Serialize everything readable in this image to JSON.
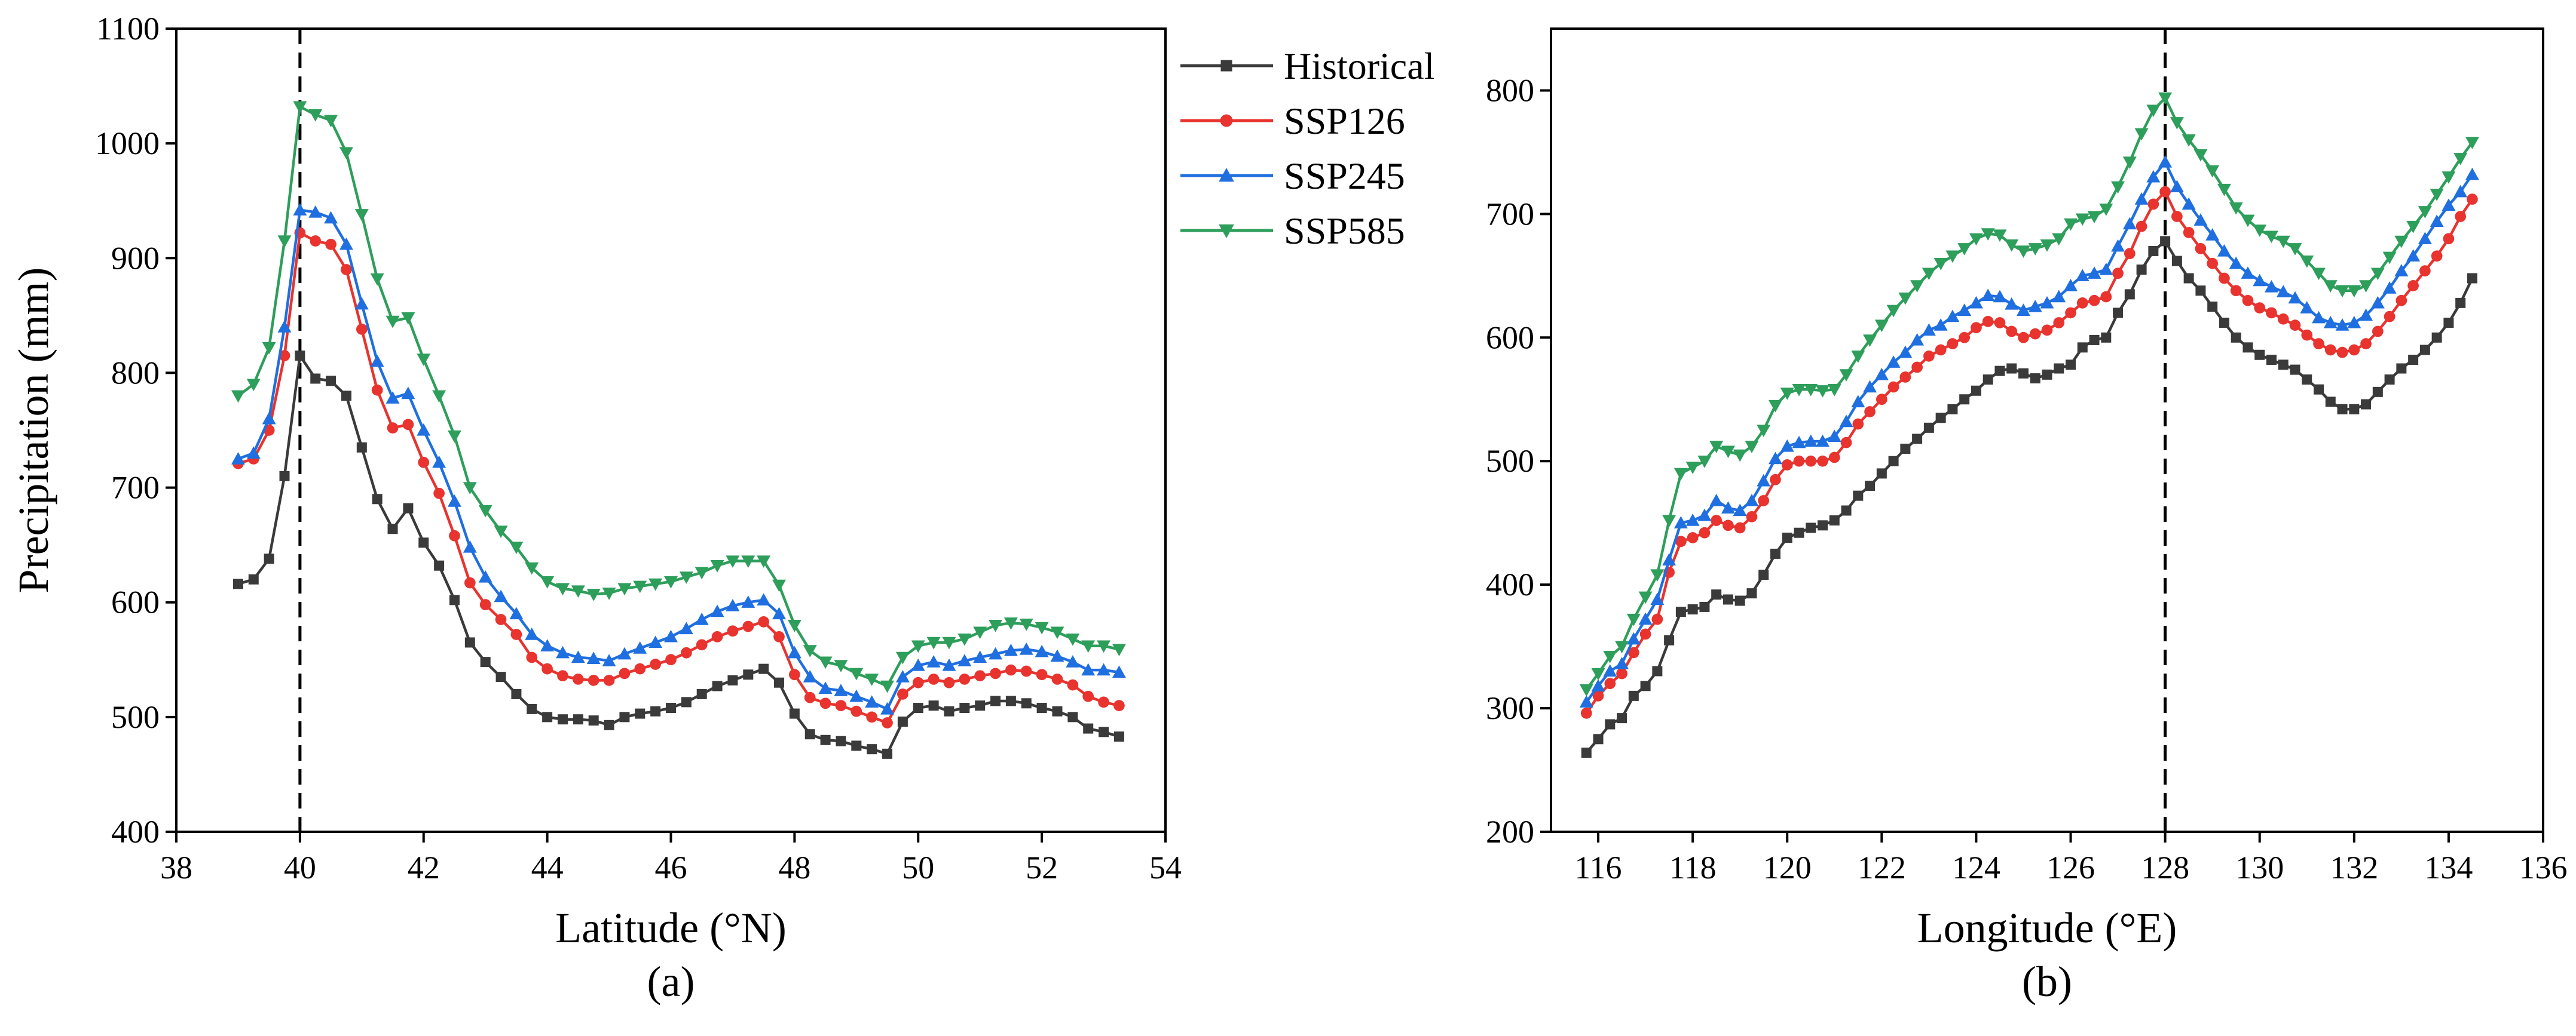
{
  "colors": {
    "Historical": "#3a3a3a",
    "SSP126": "#e8332f",
    "SSP245": "#1f6fe0",
    "SSP585": "#2e9e5b",
    "axis": "#000000"
  },
  "legend": {
    "entries": [
      "Historical",
      "SSP126",
      "SSP245",
      "SSP585"
    ],
    "placement": "top-right of panel (a)"
  },
  "chart_data": [
    {
      "type": "line",
      "panel_label": "(a)",
      "xlabel": "Latitude (°N)",
      "ylabel": "Precipitation (mm)",
      "xlim": [
        38,
        54
      ],
      "ylim": [
        400,
        1100
      ],
      "xticks": [
        38,
        40,
        42,
        44,
        46,
        48,
        50,
        52,
        54
      ],
      "yticks": [
        400,
        500,
        600,
        700,
        800,
        900,
        1000,
        1100
      ],
      "reference_x": 40,
      "x": [
        39.0,
        39.25,
        39.5,
        39.75,
        40.0,
        40.25,
        40.5,
        40.75,
        41.0,
        41.25,
        41.5,
        41.75,
        42.0,
        42.25,
        42.5,
        42.75,
        43.0,
        43.25,
        43.5,
        43.75,
        44.0,
        44.25,
        44.5,
        44.75,
        45.0,
        45.25,
        45.5,
        45.75,
        46.0,
        46.25,
        46.5,
        46.75,
        47.0,
        47.25,
        47.5,
        47.75,
        48.0,
        48.25,
        48.5,
        48.75,
        49.0,
        49.25,
        49.5,
        49.75,
        50.0,
        50.25,
        50.5,
        50.75,
        51.0,
        51.25,
        51.5,
        51.75,
        52.0,
        52.25,
        52.5,
        52.75,
        53.0,
        53.25
      ],
      "series": [
        {
          "name": "Historical",
          "marker": "square",
          "values": [
            616,
            620,
            638,
            710,
            815,
            795,
            793,
            780,
            735,
            690,
            664,
            682,
            652,
            632,
            602,
            565,
            548,
            535,
            520,
            507,
            500,
            498,
            498,
            497,
            493,
            500,
            503,
            505,
            508,
            513,
            520,
            527,
            532,
            537,
            542,
            530,
            503,
            485,
            480,
            479,
            475,
            472,
            468,
            496,
            508,
            510,
            505,
            508,
            510,
            514,
            514,
            512,
            508,
            505,
            500,
            490,
            487,
            483
          ]
        },
        {
          "name": "SSP126",
          "marker": "circle",
          "values": [
            721,
            725,
            750,
            815,
            922,
            915,
            912,
            890,
            838,
            785,
            752,
            755,
            722,
            695,
            658,
            617,
            598,
            585,
            572,
            552,
            542,
            536,
            533,
            532,
            532,
            538,
            542,
            546,
            550,
            556,
            563,
            570,
            575,
            579,
            583,
            570,
            537,
            517,
            512,
            510,
            505,
            500,
            495,
            520,
            530,
            533,
            530,
            533,
            536,
            538,
            541,
            540,
            537,
            533,
            528,
            518,
            513,
            510
          ]
        },
        {
          "name": "SSP245",
          "marker": "triangle-up",
          "values": [
            725,
            730,
            760,
            840,
            942,
            940,
            935,
            912,
            860,
            810,
            778,
            782,
            750,
            722,
            688,
            648,
            622,
            605,
            590,
            572,
            562,
            556,
            552,
            551,
            549,
            555,
            560,
            565,
            570,
            577,
            585,
            592,
            597,
            600,
            602,
            590,
            556,
            535,
            525,
            523,
            518,
            513,
            507,
            535,
            545,
            548,
            545,
            549,
            552,
            555,
            558,
            559,
            557,
            553,
            548,
            541,
            541,
            539
          ]
        },
        {
          "name": "SSP585",
          "marker": "triangle-down",
          "values": [
            780,
            790,
            822,
            915,
            1032,
            1025,
            1020,
            992,
            938,
            882,
            845,
            848,
            812,
            780,
            745,
            700,
            680,
            662,
            648,
            630,
            618,
            612,
            610,
            607,
            608,
            612,
            614,
            616,
            618,
            622,
            626,
            632,
            636,
            636,
            636,
            615,
            580,
            558,
            548,
            545,
            538,
            533,
            527,
            552,
            562,
            565,
            565,
            568,
            574,
            580,
            582,
            581,
            578,
            574,
            568,
            562,
            562,
            559
          ]
        }
      ]
    },
    {
      "type": "line",
      "panel_label": "(b)",
      "xlabel": "Longitude (°E)",
      "ylabel": "",
      "xlim": [
        115,
        136
      ],
      "ylim": [
        200,
        850
      ],
      "xticks": [
        116,
        118,
        120,
        122,
        124,
        126,
        128,
        130,
        132,
        134,
        136
      ],
      "yticks": [
        200,
        300,
        400,
        500,
        600,
        700,
        800
      ],
      "reference_x": 128,
      "x": [
        115.75,
        116.0,
        116.25,
        116.5,
        116.75,
        117.0,
        117.25,
        117.5,
        117.75,
        118.0,
        118.25,
        118.5,
        118.75,
        119.0,
        119.25,
        119.5,
        119.75,
        120.0,
        120.25,
        120.5,
        120.75,
        121.0,
        121.25,
        121.5,
        121.75,
        122.0,
        122.25,
        122.5,
        122.75,
        123.0,
        123.25,
        123.5,
        123.75,
        124.0,
        124.25,
        124.5,
        124.75,
        125.0,
        125.25,
        125.5,
        125.75,
        126.0,
        126.25,
        126.5,
        126.75,
        127.0,
        127.25,
        127.5,
        127.75,
        128.0,
        128.25,
        128.5,
        128.75,
        129.0,
        129.25,
        129.5,
        129.75,
        130.0,
        130.25,
        130.5,
        130.75,
        131.0,
        131.25,
        131.5,
        131.75,
        132.0,
        132.25,
        132.5,
        132.75,
        133.0,
        133.25,
        133.5,
        133.75,
        134.0,
        134.25,
        134.5
      ],
      "series": [
        {
          "name": "Historical",
          "marker": "square",
          "values": [
            264,
            275,
            287,
            292,
            310,
            318,
            330,
            355,
            378,
            380,
            382,
            392,
            388,
            387,
            393,
            408,
            425,
            438,
            442,
            446,
            448,
            452,
            460,
            472,
            480,
            490,
            500,
            510,
            518,
            527,
            535,
            542,
            550,
            557,
            566,
            573,
            575,
            571,
            567,
            570,
            575,
            578,
            592,
            598,
            600,
            620,
            635,
            655,
            670,
            678,
            662,
            648,
            638,
            625,
            612,
            600,
            592,
            586,
            582,
            578,
            574,
            566,
            558,
            548,
            542,
            542,
            546,
            556,
            566,
            575,
            582,
            590,
            600,
            612,
            628,
            648
          ]
        },
        {
          "name": "SSP126",
          "marker": "circle",
          "values": [
            296,
            310,
            320,
            328,
            345,
            360,
            372,
            410,
            435,
            438,
            442,
            452,
            448,
            446,
            455,
            468,
            485,
            497,
            500,
            500,
            500,
            503,
            515,
            530,
            540,
            550,
            560,
            568,
            576,
            585,
            590,
            595,
            600,
            608,
            613,
            612,
            605,
            600,
            603,
            606,
            612,
            620,
            628,
            630,
            633,
            652,
            668,
            690,
            708,
            718,
            698,
            685,
            672,
            660,
            648,
            638,
            630,
            624,
            620,
            615,
            610,
            602,
            595,
            590,
            588,
            590,
            595,
            605,
            617,
            630,
            642,
            654,
            666,
            680,
            698,
            712
          ]
        },
        {
          "name": "SSP245",
          "marker": "triangle-up",
          "values": [
            305,
            318,
            330,
            336,
            356,
            372,
            388,
            420,
            450,
            452,
            456,
            468,
            462,
            460,
            468,
            484,
            502,
            512,
            515,
            516,
            516,
            520,
            532,
            548,
            560,
            570,
            580,
            588,
            598,
            606,
            610,
            617,
            622,
            628,
            634,
            633,
            627,
            622,
            625,
            628,
            633,
            642,
            650,
            652,
            655,
            674,
            692,
            712,
            730,
            742,
            722,
            708,
            695,
            683,
            670,
            660,
            652,
            646,
            641,
            637,
            632,
            624,
            616,
            612,
            610,
            612,
            618,
            628,
            640,
            654,
            666,
            680,
            694,
            707,
            718,
            732
          ]
        },
        {
          "name": "SSP585",
          "marker": "triangle-down",
          "values": [
            315,
            328,
            342,
            350,
            372,
            390,
            408,
            452,
            490,
            495,
            500,
            512,
            508,
            505,
            512,
            525,
            545,
            555,
            558,
            558,
            557,
            558,
            570,
            585,
            598,
            610,
            622,
            632,
            642,
            652,
            660,
            666,
            672,
            680,
            684,
            683,
            675,
            670,
            672,
            675,
            680,
            692,
            696,
            698,
            704,
            722,
            742,
            765,
            784,
            794,
            774,
            760,
            748,
            735,
            720,
            705,
            695,
            687,
            682,
            678,
            672,
            662,
            652,
            642,
            638,
            638,
            642,
            652,
            665,
            678,
            690,
            702,
            716,
            730,
            745,
            758
          ]
        }
      ]
    }
  ]
}
